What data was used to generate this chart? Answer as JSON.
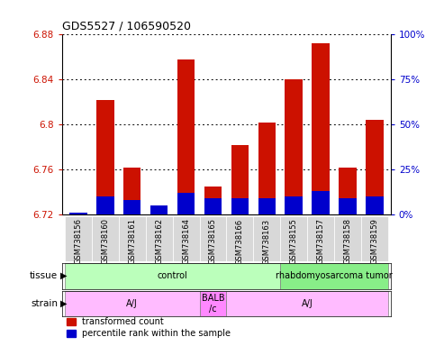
{
  "title": "GDS5527 / 106590520",
  "samples": [
    "GSM738156",
    "GSM738160",
    "GSM738161",
    "GSM738162",
    "GSM738164",
    "GSM738165",
    "GSM738166",
    "GSM738163",
    "GSM738155",
    "GSM738157",
    "GSM738158",
    "GSM738159"
  ],
  "red_tops": [
    6.722,
    6.822,
    6.762,
    6.724,
    6.858,
    6.745,
    6.782,
    6.802,
    6.84,
    6.872,
    6.762,
    6.804
  ],
  "blue_pct": [
    1,
    10,
    8,
    5,
    12,
    9,
    9,
    9,
    10,
    13,
    9,
    10
  ],
  "ymin": 6.72,
  "ymax": 6.88,
  "yticks": [
    6.72,
    6.76,
    6.8,
    6.84,
    6.88
  ],
  "ytick_labels": [
    "6.72",
    "6.76",
    "6.8",
    "6.84",
    "6.88"
  ],
  "right_yticks": [
    0,
    25,
    50,
    75,
    100
  ],
  "right_ylabels": [
    "0%",
    "25%",
    "50%",
    "75%",
    "100%"
  ],
  "bar_width": 0.65,
  "red_color": "#cc1100",
  "blue_color": "#0000cc",
  "tissue_groups": [
    {
      "text": "control",
      "xstart": -0.5,
      "xend": 7.5,
      "color": "#bbffbb"
    },
    {
      "text": "rhabdomyosarcoma tumor",
      "xstart": 7.5,
      "xend": 11.5,
      "color": "#88ee88"
    }
  ],
  "strain_groups": [
    {
      "text": "A/J",
      "xstart": -0.5,
      "xend": 4.5,
      "color": "#ffbbff"
    },
    {
      "text": "BALB\n/c",
      "xstart": 4.5,
      "xend": 5.5,
      "color": "#ff88ff"
    },
    {
      "text": "A/J",
      "xstart": 5.5,
      "xend": 11.5,
      "color": "#ffbbff"
    }
  ],
  "legend_red": "transformed count",
  "legend_blue": "percentile rank within the sample",
  "axis_left_color": "#cc1100",
  "axis_right_color": "#0000cc",
  "sample_bg_color": "#d8d8d8",
  "chart_bg_color": "#ffffff",
  "title_fontsize": 9,
  "tick_fontsize": 7.5,
  "sample_fontsize": 6,
  "legend_fontsize": 7,
  "row_label_fontsize": 7.5,
  "row_text_fontsize": 7
}
